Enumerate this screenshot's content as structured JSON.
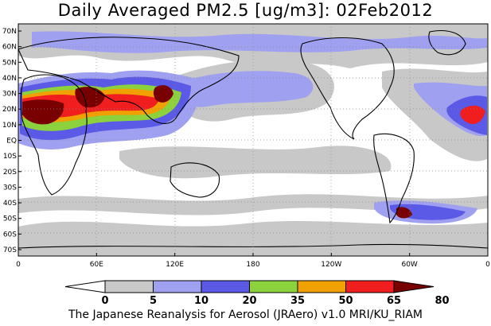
{
  "title": "Daily Averaged PM2.5 [ug/m3]: 02Feb2012",
  "footer": "The Japanese Reanalysis for Aerosol (JRAero) v1.0 MRI/KU_RIAM",
  "lat_labels": [
    "70N",
    "60N",
    "50N",
    "40N",
    "30N",
    "20N",
    "10N",
    "EQ",
    "10S",
    "20S",
    "30S",
    "40S",
    "50S",
    "60S",
    "70S"
  ],
  "lon_labels": [
    "0",
    "60E",
    "120E",
    "180",
    "120W",
    "60W",
    "0"
  ],
  "colorbar": {
    "levels": [
      "0",
      "5",
      "10",
      "20",
      "35",
      "50",
      "65",
      "80"
    ],
    "colors": [
      "#ffffff",
      "#c8c8c8",
      "#a0a0f0",
      "#5a5ae6",
      "#8cd23c",
      "#f0a000",
      "#f01e1e",
      "#780000"
    ]
  },
  "map_colors": {
    "land_outline": "#000000",
    "grid": "#888888"
  }
}
